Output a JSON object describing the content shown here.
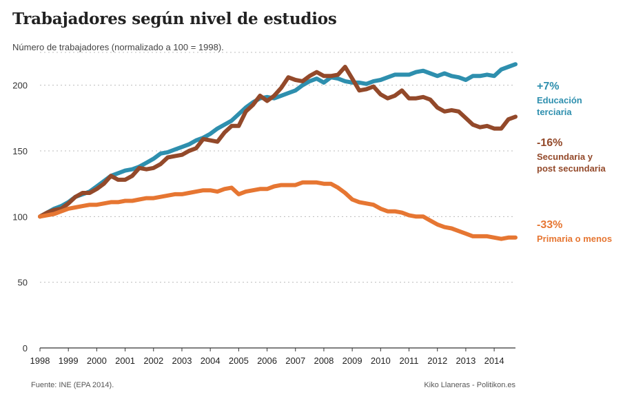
{
  "title": "Trabajadores según nivel de estudios",
  "subtitle": "Número de trabajadores (normalizado a 100 = 1998).",
  "footer": {
    "source": "Fuente: INE (EPA 2014).",
    "credit": "Kiko Llaneras - Politikon.es"
  },
  "colors": {
    "tertiary": "#2e8fae",
    "secondary": "#93492a",
    "primary": "#e67632",
    "grid": "#bbbbbb",
    "axis": "#333333"
  },
  "chart_data": {
    "type": "line",
    "title": "Trabajadores según nivel de estudios",
    "ylabel": "Número de trabajadores (normalizado a 100 = 1998).",
    "xlim": [
      1998,
      2014.75
    ],
    "ylim": [
      0,
      225
    ],
    "yticks": [
      0,
      50,
      100,
      150,
      200
    ],
    "xticks": [
      1998,
      1999,
      2000,
      2001,
      2002,
      2003,
      2004,
      2005,
      2006,
      2007,
      2008,
      2009,
      2010,
      2011,
      2012,
      2013,
      2014
    ],
    "series": [
      {
        "key": "tertiary",
        "name": "Educación terciaria",
        "change_label": "+7%",
        "label_lines": [
          "Educación",
          "terciaria"
        ],
        "x": [
          1998,
          1998.25,
          1998.5,
          1998.75,
          1999,
          1999.25,
          1999.5,
          1999.75,
          2000,
          2000.25,
          2000.5,
          2000.75,
          2001,
          2001.25,
          2001.5,
          2001.75,
          2002,
          2002.25,
          2002.5,
          2002.75,
          2003,
          2003.25,
          2003.5,
          2003.75,
          2004,
          2004.25,
          2004.5,
          2004.75,
          2005,
          2005.25,
          2005.5,
          2005.75,
          2006,
          2006.25,
          2006.5,
          2006.75,
          2007,
          2007.25,
          2007.5,
          2007.75,
          2008,
          2008.25,
          2008.5,
          2008.75,
          2009,
          2009.25,
          2009.5,
          2009.75,
          2010,
          2010.25,
          2010.5,
          2010.75,
          2011,
          2011.25,
          2011.5,
          2011.75,
          2012,
          2012.25,
          2012.5,
          2012.75,
          2013,
          2013.25,
          2013.5,
          2013.75,
          2014,
          2014.25,
          2014.5,
          2014.75
        ],
        "values": [
          100,
          103,
          106,
          108,
          111,
          115,
          117,
          119,
          123,
          127,
          131,
          133,
          135,
          136,
          138,
          141,
          144,
          148,
          149,
          151,
          153,
          155,
          158,
          160,
          163,
          167,
          170,
          173,
          178,
          183,
          187,
          190,
          191,
          190,
          192,
          194,
          196,
          200,
          203,
          205,
          202,
          206,
          205,
          203,
          202,
          202,
          201,
          203,
          204,
          206,
          208,
          208,
          208,
          210,
          211,
          209,
          207,
          209,
          207,
          206,
          204,
          207,
          207,
          208,
          207,
          212,
          214,
          216
        ]
      },
      {
        "key": "secondary",
        "name": "Secundaria y post secundaria",
        "change_label": "-16%",
        "label_lines": [
          "Secundaria y",
          "post secundaria"
        ],
        "x": [
          1998,
          1998.25,
          1998.5,
          1998.75,
          1999,
          1999.25,
          1999.5,
          1999.75,
          2000,
          2000.25,
          2000.5,
          2000.75,
          2001,
          2001.25,
          2001.5,
          2001.75,
          2002,
          2002.25,
          2002.5,
          2002.75,
          2003,
          2003.25,
          2003.5,
          2003.75,
          2004,
          2004.25,
          2004.5,
          2004.75,
          2005,
          2005.25,
          2005.5,
          2005.75,
          2006,
          2006.25,
          2006.5,
          2006.75,
          2007,
          2007.25,
          2007.5,
          2007.75,
          2008,
          2008.25,
          2008.5,
          2008.75,
          2009,
          2009.25,
          2009.5,
          2009.75,
          2010,
          2010.25,
          2010.5,
          2010.75,
          2011,
          2011.25,
          2011.5,
          2011.75,
          2012,
          2012.25,
          2012.5,
          2012.75,
          2013,
          2013.25,
          2013.5,
          2013.75,
          2014,
          2014.25,
          2014.5,
          2014.75
        ],
        "values": [
          100,
          103,
          105,
          106,
          110,
          115,
          118,
          118,
          121,
          125,
          131,
          128,
          128,
          131,
          137,
          136,
          137,
          140,
          145,
          146,
          147,
          150,
          152,
          159,
          158,
          157,
          164,
          169,
          169,
          180,
          185,
          192,
          188,
          192,
          198,
          206,
          204,
          203,
          207,
          210,
          207,
          207,
          208,
          214,
          205,
          196,
          197,
          199,
          193,
          190,
          192,
          196,
          190,
          190,
          191,
          189,
          183,
          180,
          181,
          180,
          175,
          170,
          168,
          169,
          167,
          167,
          174,
          176
        ]
      },
      {
        "key": "primary",
        "name": "Primaria o menos",
        "change_label": "-33%",
        "label_lines": [
          "Primaria o menos"
        ],
        "x": [
          1998,
          1998.25,
          1998.5,
          1998.75,
          1999,
          1999.25,
          1999.5,
          1999.75,
          2000,
          2000.25,
          2000.5,
          2000.75,
          2001,
          2001.25,
          2001.5,
          2001.75,
          2002,
          2002.25,
          2002.5,
          2002.75,
          2003,
          2003.25,
          2003.5,
          2003.75,
          2004,
          2004.25,
          2004.5,
          2004.75,
          2005,
          2005.25,
          2005.5,
          2005.75,
          2006,
          2006.25,
          2006.5,
          2006.75,
          2007,
          2007.25,
          2007.5,
          2007.75,
          2008,
          2008.25,
          2008.5,
          2008.75,
          2009,
          2009.25,
          2009.5,
          2009.75,
          2010,
          2010.25,
          2010.5,
          2010.75,
          2011,
          2011.25,
          2011.5,
          2011.75,
          2012,
          2012.25,
          2012.5,
          2012.75,
          2013,
          2013.25,
          2013.5,
          2013.75,
          2014,
          2014.25,
          2014.5,
          2014.75
        ],
        "values": [
          100,
          101,
          102,
          104,
          106,
          107,
          108,
          109,
          109,
          110,
          111,
          111,
          112,
          112,
          113,
          114,
          114,
          115,
          116,
          117,
          117,
          118,
          119,
          120,
          120,
          119,
          121,
          122,
          117,
          119,
          120,
          121,
          121,
          123,
          124,
          124,
          124,
          126,
          126,
          126,
          125,
          125,
          122,
          118,
          113,
          111,
          110,
          109,
          106,
          104,
          104,
          103,
          101,
          100,
          100,
          97,
          94,
          92,
          91,
          89,
          87,
          85,
          85,
          85,
          84,
          83,
          84,
          84
        ]
      }
    ]
  }
}
